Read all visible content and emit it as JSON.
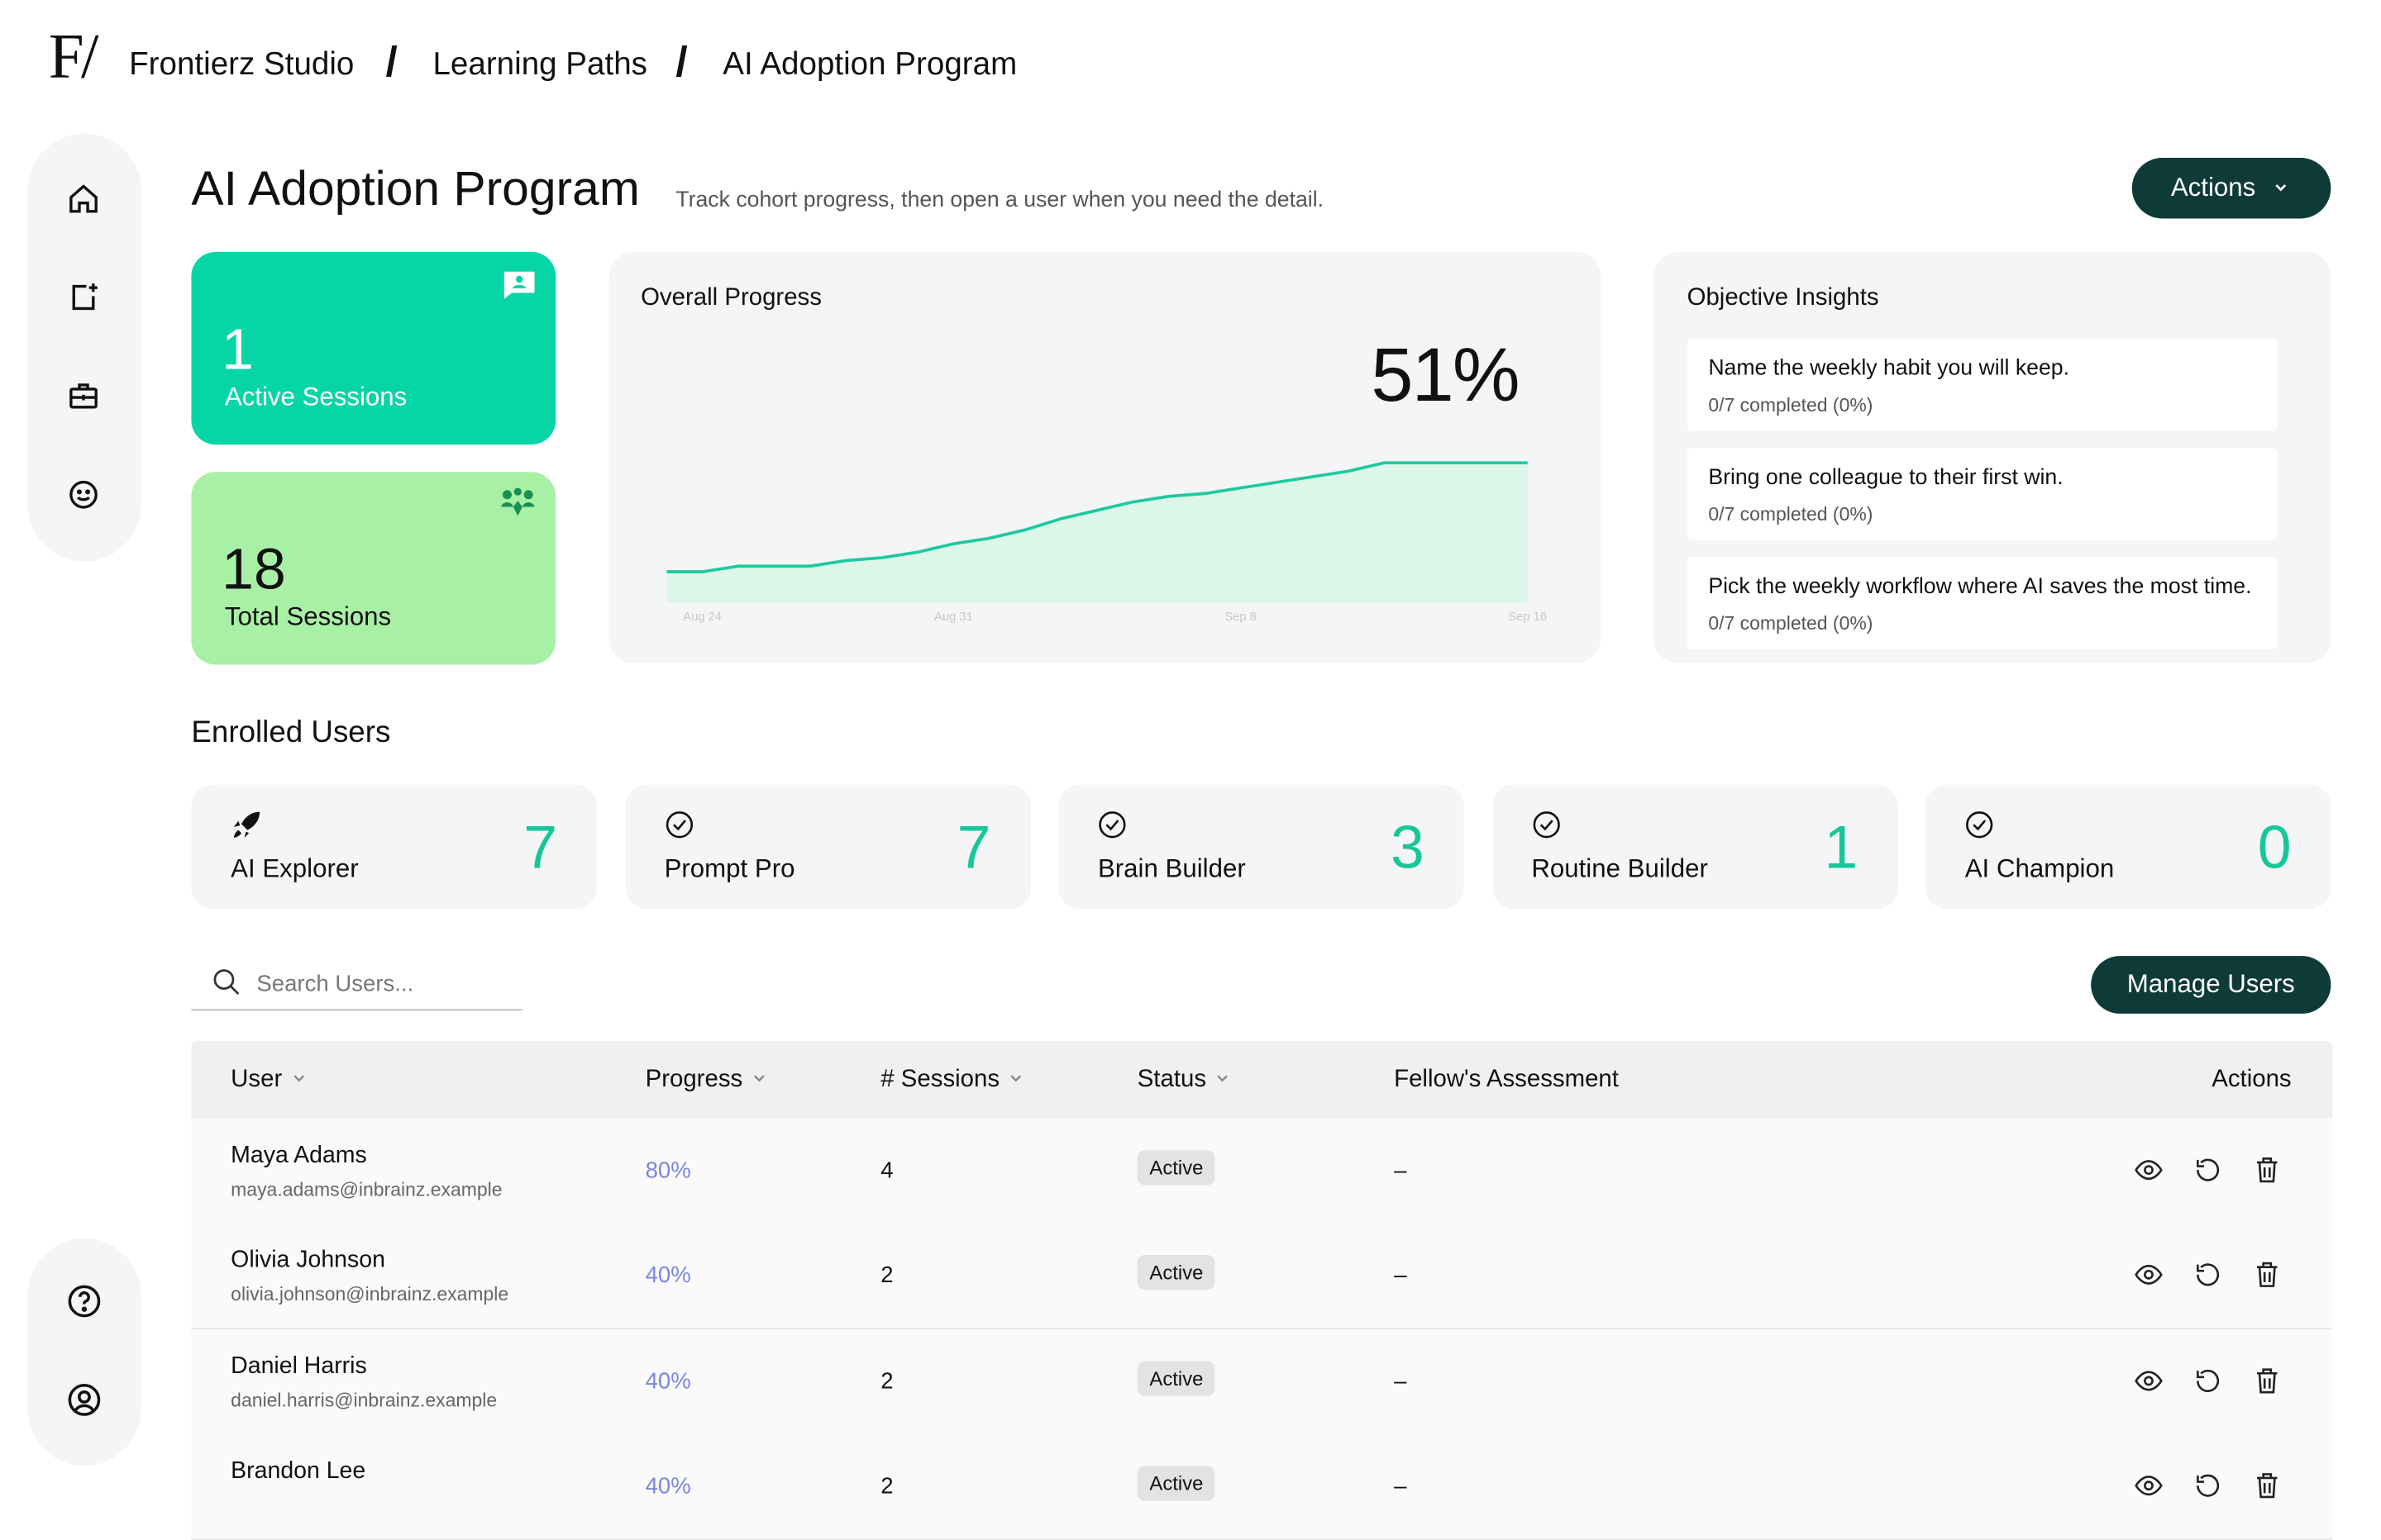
{
  "logo": "F/",
  "breadcrumb": [
    "Frontierz Studio",
    "Learning Paths",
    "AI Adoption Program"
  ],
  "header": {
    "title": "AI Adoption Program",
    "subtitle": "Track cohort progress, then open a user when you need the detail.",
    "actions_button": "Actions"
  },
  "stats": [
    {
      "value": "1",
      "label": "Active Sessions"
    },
    {
      "value": "18",
      "label": "Total Sessions"
    }
  ],
  "chart_data": {
    "type": "area",
    "title": "Overall Progress",
    "headline": "51%",
    "color": "#1ec9a0",
    "fill": "#dcf7ea",
    "categories": [
      null,
      "Aug 24",
      null,
      null,
      null,
      null,
      null,
      null,
      "Aug 31",
      null,
      null,
      null,
      null,
      null,
      null,
      null,
      "Sep 8",
      null,
      null,
      null,
      null,
      null,
      null,
      null,
      "Sep 16"
    ],
    "values": [
      11,
      11,
      13,
      13,
      13,
      15,
      16,
      18,
      21,
      23,
      26,
      30,
      33,
      36,
      38,
      39,
      41,
      43,
      45,
      47,
      50,
      50,
      50,
      50,
      50
    ]
  },
  "objective_insights": {
    "title": "Objective Insights",
    "items": [
      {
        "text": "Name the weekly habit you will keep.",
        "progress": "0/7 completed (0%)"
      },
      {
        "text": "Bring one colleague to their first win.",
        "progress": "0/7 completed (0%)"
      },
      {
        "text": "Pick the weekly workflow where AI saves the most time.",
        "progress": "0/7 completed (0%)"
      }
    ]
  },
  "enrolled": {
    "title": "Enrolled Users",
    "levels": [
      {
        "name": "AI Explorer",
        "count": 7
      },
      {
        "name": "Prompt Pro",
        "count": 7
      },
      {
        "name": "Brain Builder",
        "count": 3
      },
      {
        "name": "Routine Builder",
        "count": 1
      },
      {
        "name": "AI Champion",
        "count": 0
      }
    ]
  },
  "search_placeholder": "Search Users...",
  "manage_button": "Manage Users",
  "table": {
    "columns": [
      "User",
      "Progress",
      "# Sessions",
      "Status",
      "Fellow's Assessment",
      "Actions"
    ],
    "rows": [
      {
        "name": "Maya Adams",
        "email": "maya.adams@inbrainz.example",
        "progress": "80%",
        "sessions": "4",
        "status": "Active",
        "assessment": "–"
      },
      {
        "name": "Olivia Johnson",
        "email": "olivia.johnson@inbrainz.example",
        "progress": "40%",
        "sessions": "2",
        "status": "Active",
        "assessment": "–"
      },
      {
        "name": "Daniel Harris",
        "email": "daniel.harris@inbrainz.example",
        "progress": "40%",
        "sessions": "2",
        "status": "Active",
        "assessment": "–"
      },
      {
        "name": "Brandon Lee",
        "progress": "40%",
        "sessions": "2",
        "status": "Active",
        "assessment": "–"
      }
    ]
  }
}
